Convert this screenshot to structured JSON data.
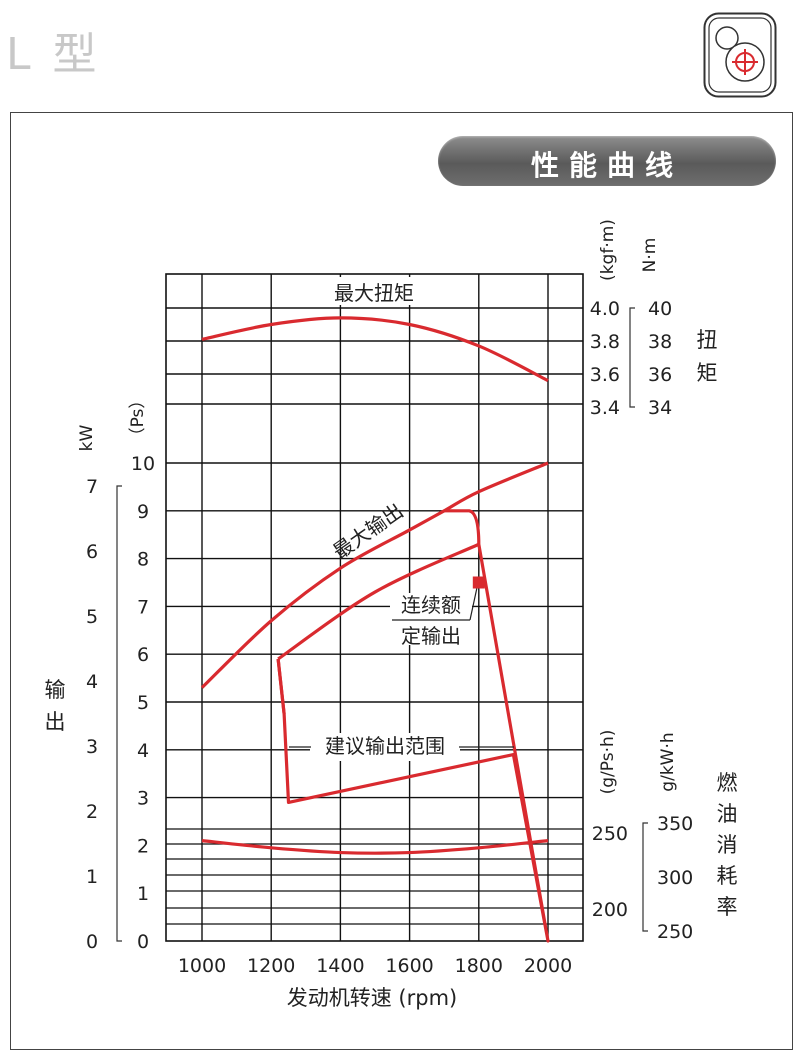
{
  "page": {
    "title": "L 型",
    "banner": "性能曲线"
  },
  "colors": {
    "curve": "#d92a2f",
    "grid": "#111111",
    "banner_bg": "#6e6e6e",
    "title_gray": "#c8c8c8"
  },
  "icons": [
    "logo-emblem-icon"
  ],
  "chart_data": {
    "type": "line",
    "xlabel": "发动机转速 (rpm)",
    "x_ticks": [
      "1000",
      "1200",
      "1400",
      "1600",
      "1800",
      "2000"
    ],
    "xlim": [
      900,
      2000
    ],
    "torque_axis": {
      "label": "扭矩",
      "unit_kgf": "(kgf·m)",
      "unit_nm": "N·m",
      "ticks_kgf": [
        "3.4",
        "3.6",
        "3.8",
        "4.0"
      ],
      "ticks_nm": [
        "34",
        "36",
        "38",
        "40"
      ]
    },
    "output_axis": {
      "label": "输出",
      "unit_kw": "kW",
      "unit_ps": "（Ps）",
      "ticks_kw": [
        "0",
        "1",
        "2",
        "3",
        "4",
        "5",
        "6",
        "7"
      ],
      "ticks_ps": [
        "0",
        "1",
        "2",
        "3",
        "4",
        "5",
        "6",
        "7",
        "8",
        "9",
        "10"
      ]
    },
    "fuel_axis": {
      "label": "燃油消耗率",
      "unit_gps": "(g/Ps·h)",
      "unit_gkw": "g/kW·h",
      "ticks_gps": [
        "200",
        "250"
      ],
      "ticks_gkw": [
        "250",
        "300",
        "350"
      ]
    },
    "series": [
      {
        "name": "最大扭矩",
        "axis": "torque_kgf",
        "points": [
          [
            1000,
            3.81
          ],
          [
            1200,
            3.9
          ],
          [
            1400,
            3.94
          ],
          [
            1600,
            3.9
          ],
          [
            1800,
            3.77
          ],
          [
            2000,
            3.56
          ]
        ]
      },
      {
        "name": "最大输出",
        "axis": "output_ps",
        "points": [
          [
            1000,
            5.3
          ],
          [
            1200,
            6.7
          ],
          [
            1400,
            7.8
          ],
          [
            1600,
            8.6
          ],
          [
            1700,
            9.0
          ],
          [
            1800,
            9.4
          ],
          [
            2000,
            10.0
          ]
        ]
      },
      {
        "name": "fuel_consumption",
        "axis": "fuel",
        "points": [
          [
            1000,
            2.1
          ],
          [
            1200,
            1.95
          ],
          [
            1400,
            1.85
          ],
          [
            1600,
            1.85
          ],
          [
            1800,
            1.95
          ],
          [
            2000,
            2.1
          ]
        ]
      }
    ],
    "operating_range": {
      "label": "建议输出范围",
      "outline_ps": [
        [
          1220,
          5.9
        ],
        [
          1700,
          9.0
        ],
        [
          1800,
          8.3
        ],
        [
          2000,
          0
        ],
        [
          1900,
          3.9
        ],
        [
          1250,
          2.9
        ],
        [
          1220,
          5.9
        ]
      ],
      "upper_line_ps": [
        [
          1220,
          5.9
        ],
        [
          1500,
          7.3
        ],
        [
          1800,
          8.3
        ]
      ]
    },
    "rated_point": {
      "label_line1": "连续额",
      "label_line2": "定输出",
      "rpm": 1800,
      "ps": 7.5
    }
  }
}
